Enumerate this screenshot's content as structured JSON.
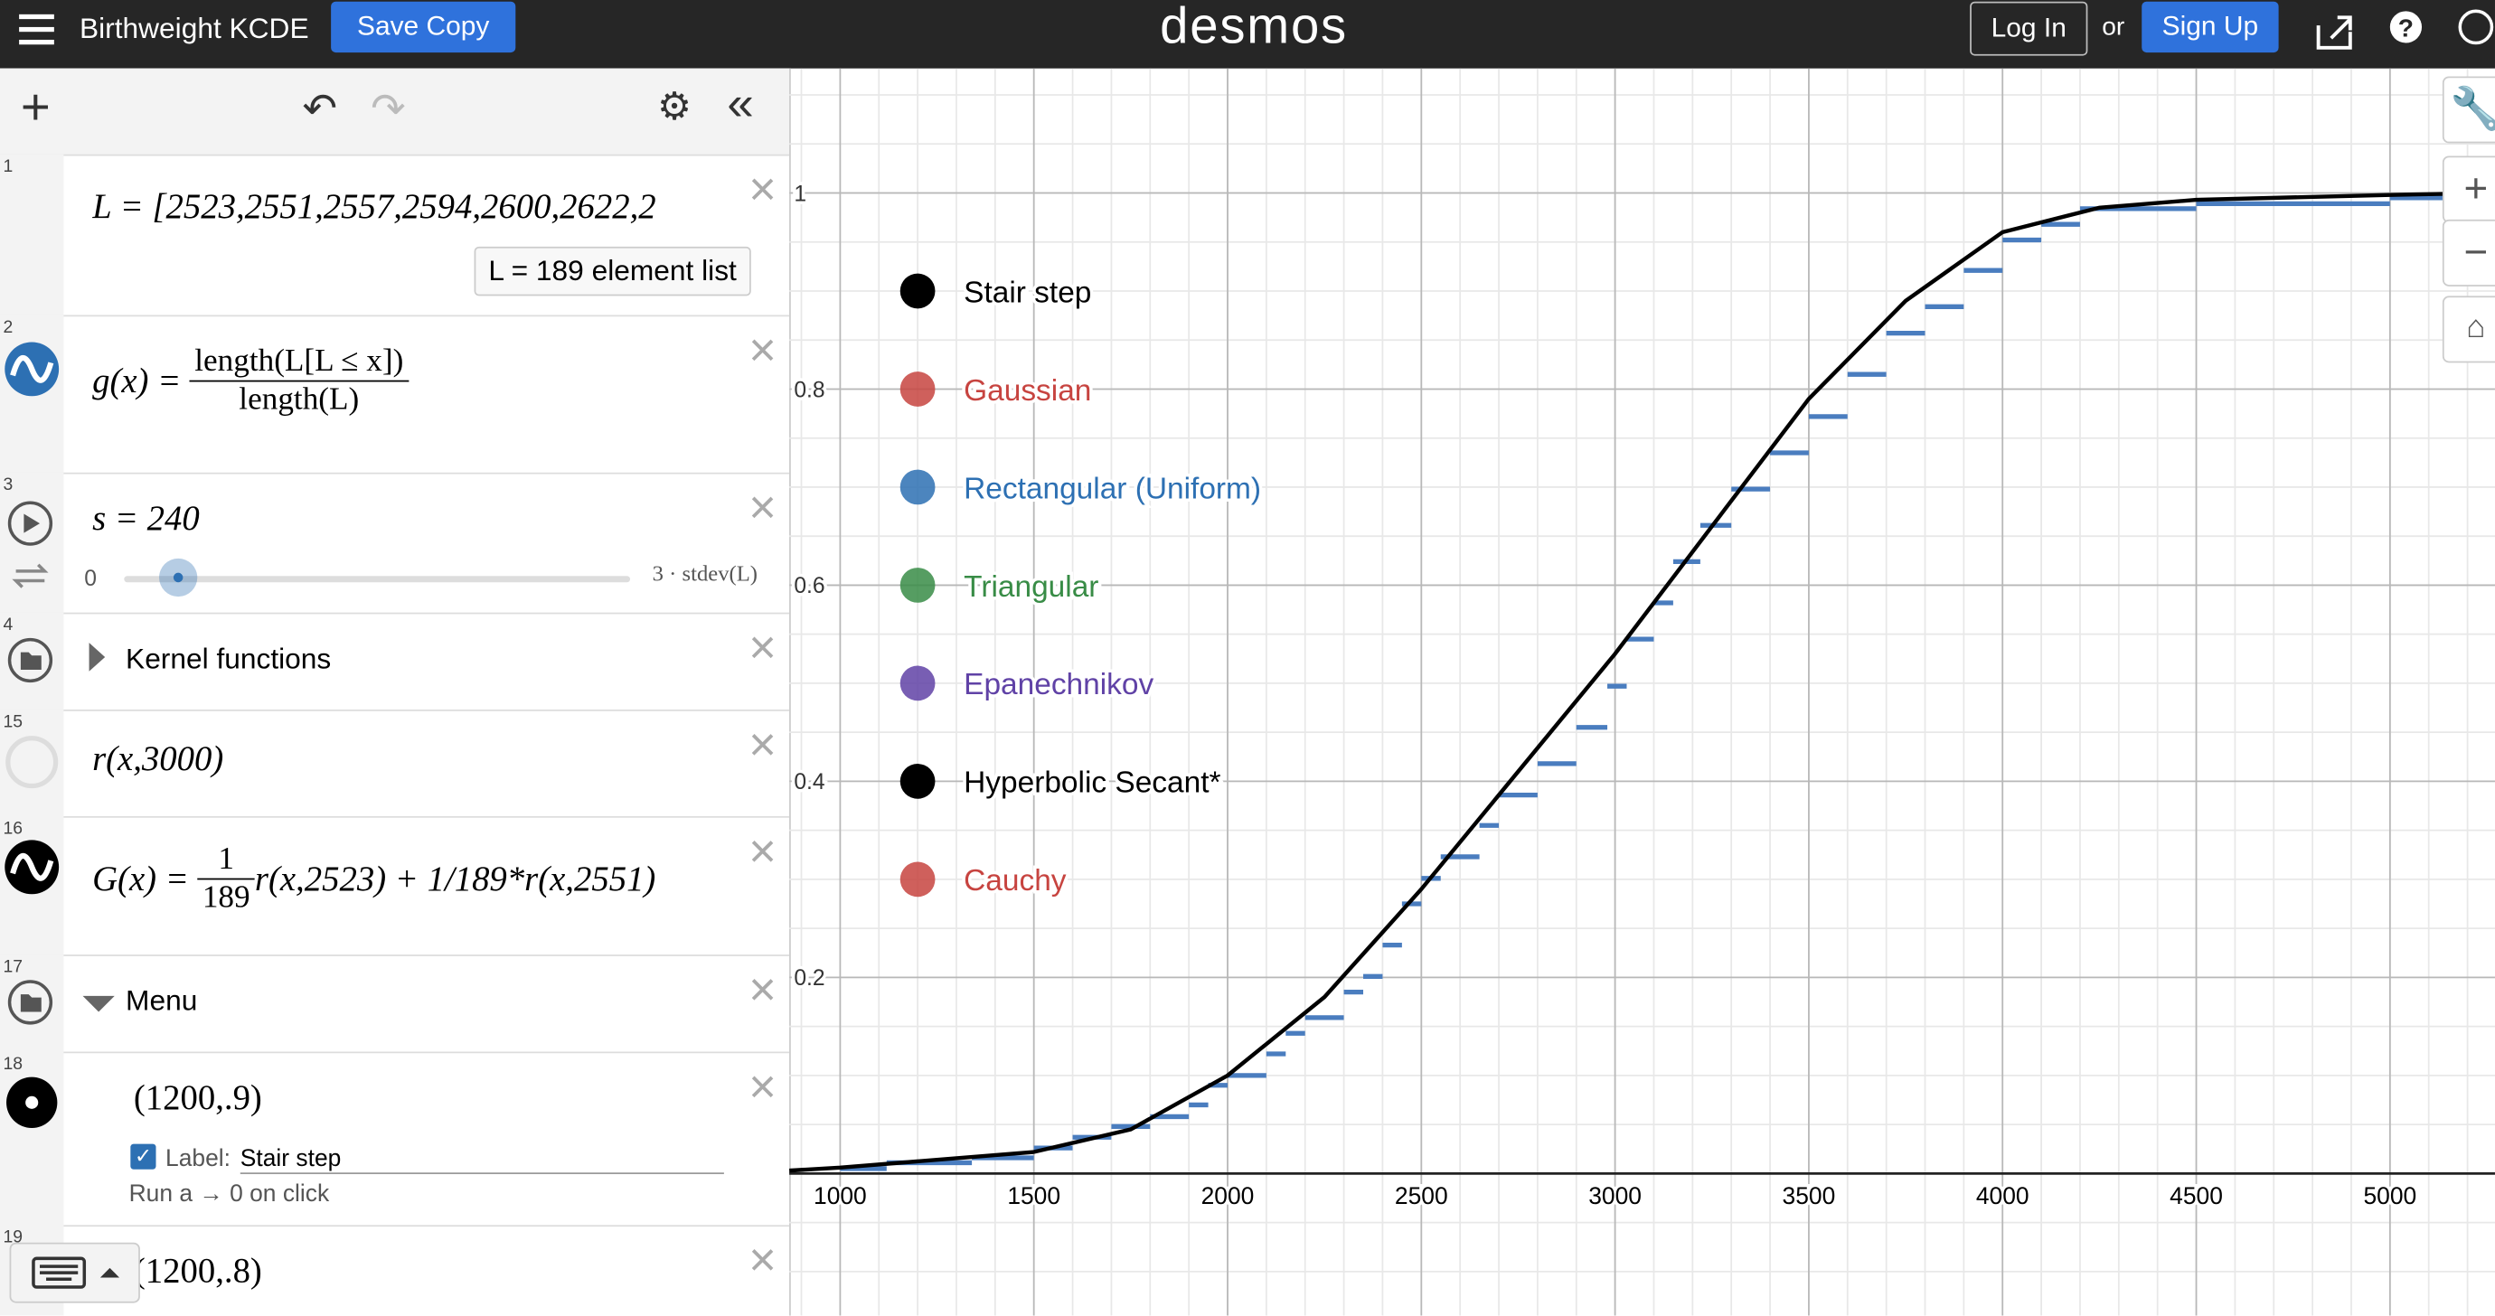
{
  "header": {
    "title": "Birthweight KCDE",
    "save": "Save Copy",
    "logo": "desmos",
    "login": "Log In",
    "or": "or",
    "signup": "Sign Up"
  },
  "expressions": [
    {
      "number": "1",
      "text": "L = [2523,2551,2557,2594,2600,2622,2",
      "summary": "L  =  189 element list"
    },
    {
      "number": "2",
      "lhs": "g(x) =",
      "numerator": "length(L[L ≤ x])",
      "denominator": "length(L)"
    },
    {
      "number": "3",
      "text": "s = 240",
      "min": "0",
      "max": "3 · stdev(L)"
    },
    {
      "number": "4",
      "text": "Kernel functions"
    },
    {
      "number": "15",
      "text": "r(x,3000)"
    },
    {
      "number": "16",
      "lhs": "G(x) =",
      "numerator": "1",
      "denominator": "189",
      "rest": "r(x,2523) + 1/189*r(x,2551)"
    },
    {
      "number": "17",
      "text": "Menu"
    },
    {
      "number": "18",
      "text": "(1200,.9)",
      "label_prefix": "Label:",
      "label": "Stair step",
      "action": "Run a → 0 on click"
    },
    {
      "number": "19",
      "text": "(1200,.8)"
    }
  ],
  "chart_data": {
    "type": "line",
    "xlim": [
      868.6,
      5271
    ],
    "ylim": [
      -0.145,
      1.127
    ],
    "xticks": [
      1000,
      1500,
      2000,
      2500,
      3000,
      3500,
      4000,
      4500,
      5000
    ],
    "yticks": [
      0.2,
      0.4,
      0.6,
      0.8,
      1
    ],
    "grid": true,
    "series": [
      {
        "color": "#000000",
        "x": [
          868.6,
          1000,
          1500,
          1750,
          2000,
          2250,
          2500,
          2750,
          3000,
          3250,
          3500,
          3750,
          4000,
          4250,
          4500,
          5000,
          5271
        ],
        "values": [
          0.003,
          0.006,
          0.022,
          0.045,
          0.1,
          0.18,
          0.29,
          0.41,
          0.53,
          0.66,
          0.79,
          0.89,
          0.96,
          0.985,
          0.993,
          0.998,
          1.0
        ]
      },
      {
        "color": "#4a7dbf",
        "step": true,
        "x": [
          1000,
          1120,
          1340,
          1500,
          1600,
          1700,
          1800,
          1900,
          1950,
          2000,
          2100,
          2150,
          2200,
          2300,
          2350,
          2400,
          2450,
          2500,
          2550,
          2650,
          2700,
          2800,
          2900,
          2980,
          3030,
          3100,
          3150,
          3220,
          3300,
          3400,
          3500,
          3600,
          3700,
          3800,
          3900,
          4000,
          4100,
          4200,
          4500,
          5000
        ],
        "values": [
          0.005,
          0.011,
          0.016,
          0.026,
          0.037,
          0.048,
          0.058,
          0.07,
          0.09,
          0.1,
          0.122,
          0.143,
          0.159,
          0.185,
          0.201,
          0.233,
          0.275,
          0.301,
          0.323,
          0.355,
          0.386,
          0.418,
          0.455,
          0.497,
          0.545,
          0.582,
          0.624,
          0.661,
          0.698,
          0.735,
          0.772,
          0.815,
          0.857,
          0.884,
          0.921,
          0.952,
          0.968,
          0.984,
          0.989,
          0.995
        ]
      }
    ],
    "points": [
      {
        "x": 1200,
        "y": 0.9,
        "label": "Stair step",
        "color": "#000000"
      },
      {
        "x": 1200,
        "y": 0.8,
        "label": "Gaussian",
        "color": "#c74440"
      },
      {
        "x": 1200,
        "y": 0.7,
        "label": "Rectangular (Uniform)",
        "color": "#2d70b3"
      },
      {
        "x": 1200,
        "y": 0.6,
        "label": "Triangular",
        "color": "#388c46"
      },
      {
        "x": 1200,
        "y": 0.5,
        "label": "Epanechnikov",
        "color": "#6042a6"
      },
      {
        "x": 1200,
        "y": 0.4,
        "label": "Hyperbolic Secant*",
        "color": "#000000"
      },
      {
        "x": 1200,
        "y": 0.3,
        "label": "Cauchy",
        "color": "#c74440"
      }
    ]
  }
}
